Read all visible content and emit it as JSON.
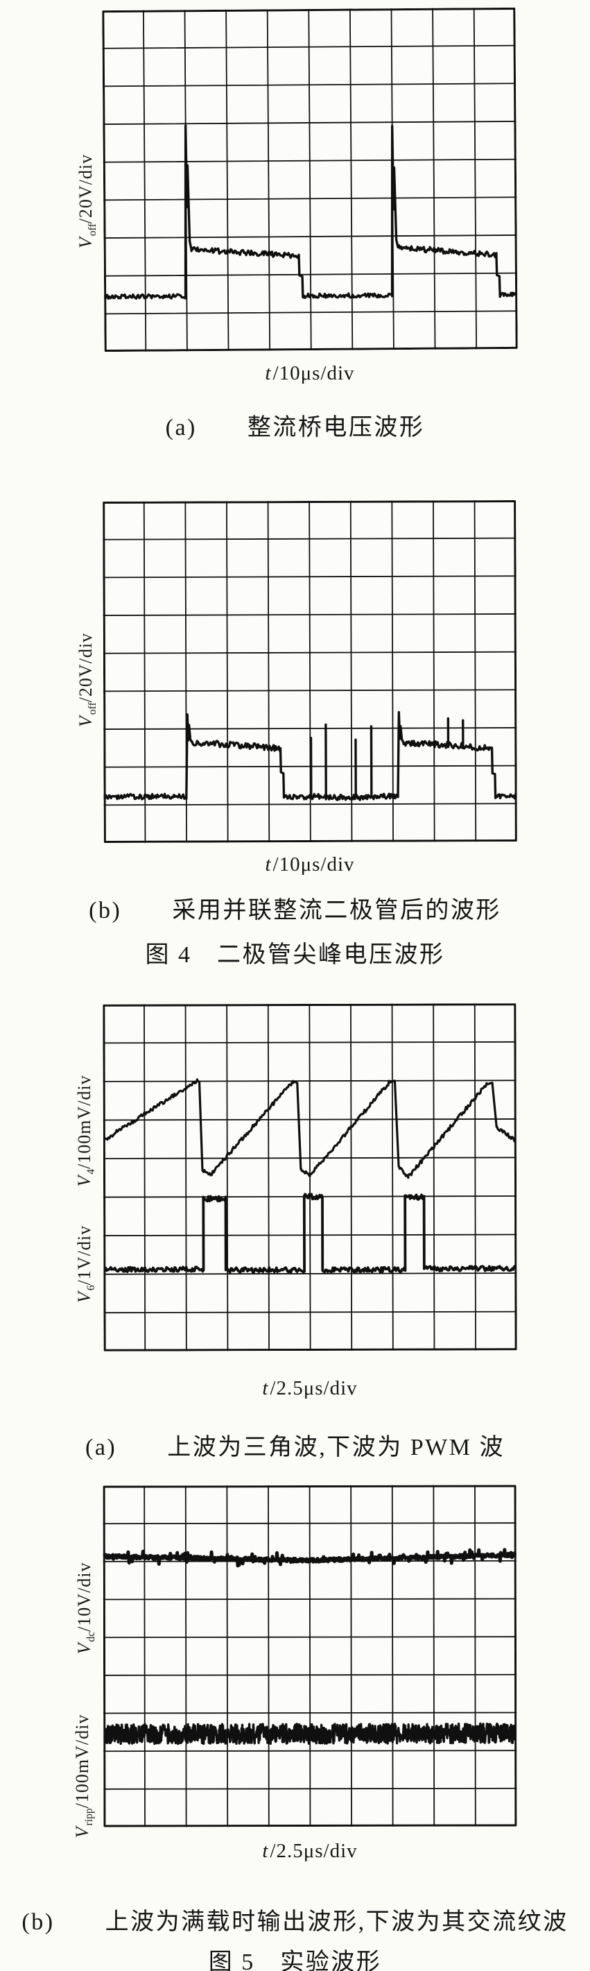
{
  "page": {
    "background": "#fbfbf8",
    "ink": "#141414"
  },
  "figures": [
    {
      "id": "fig4a",
      "ylabels": [
        {
          "var": "V",
          "sub": "off",
          "rest": "/20V/div"
        }
      ],
      "xlabel_var": "t",
      "xlabel_rest": "/10μs/div",
      "captions": [
        "(a)　　整流桥电压波形"
      ]
    },
    {
      "id": "fig4b",
      "ylabels": [
        {
          "var": "V",
          "sub": "off",
          "rest": "/20V/div"
        }
      ],
      "xlabel_var": "t",
      "xlabel_rest": "/10μs/div",
      "captions": [
        "(b)　　采用并联整流二极管后的波形",
        "图 4　二极管尖峰电压波形"
      ]
    },
    {
      "id": "fig5a",
      "ylabels": [
        {
          "var": "V",
          "sub": "4",
          "rest": "/100mV/div"
        },
        {
          "var": "V",
          "sub": "6",
          "rest": "/1V/div"
        }
      ],
      "xlabel_var": "t",
      "xlabel_rest": "/2.5μs/div",
      "captions": [
        "(a)　　上波为三角波,下波为 PWM 波"
      ]
    },
    {
      "id": "fig5b",
      "ylabels": [
        {
          "var": "V",
          "sub": "dc",
          "rest": "/10V/div"
        },
        {
          "var": "V",
          "sub": "ripp",
          "rest": "/100mV/div"
        }
      ],
      "xlabel_var": "t",
      "xlabel_rest": "/2.5μs/div",
      "captions": [
        "(b)　　上波为满载时输出波形,下波为其交流纹波",
        "图 5　实验波形"
      ]
    }
  ],
  "chart_data": [
    {
      "type": "line",
      "title": "(a) 整流桥电压波形",
      "xlabel": "t/10μs/div",
      "ylabel": "V_off/20V/div",
      "x_divisions": 10,
      "y_divisions": 9,
      "x_per_div": "10μs",
      "y_per_div": "20V",
      "grid": true,
      "coords_note": "segment geometry in graticule divisions, x from left edge, y from top edge",
      "features": {
        "baseline_div": 7.55,
        "plateau_div": 6.4,
        "spike_peak_div": 3.05,
        "period_div": 5.0,
        "spike_amplitude_V": 90,
        "plateau_amplitude_V": 24
      },
      "series": [
        {
          "name": "V_off",
          "description": "rectifier-bridge diode voltage with large turn-off spike",
          "style_width": 3.4,
          "segments": [
            {
              "t": "flat",
              "a": 0,
              "b": 1.97,
              "y": 7.55,
              "n": 0.055
            },
            {
              "t": "seq",
              "pts": [
                [
                  1.97,
                  7.55
                ],
                [
                  2.0,
                  3.05
                ],
                [
                  2.02,
                  5.2
                ],
                [
                  2.04,
                  4.1
                ],
                [
                  2.08,
                  6.1
                ],
                [
                  2.12,
                  6.32
                ]
              ]
            },
            {
              "t": "ramp",
              "a": 2.12,
              "b": 4.72,
              "y": 6.32,
              "y2": 6.5,
              "n": 0.07
            },
            {
              "t": "seq",
              "pts": [
                [
                  4.72,
                  6.5
                ],
                [
                  4.73,
                  7.02
                ],
                [
                  4.8,
                  7.05
                ],
                [
                  4.81,
                  7.6
                ],
                [
                  4.84,
                  7.56
                ]
              ]
            },
            {
              "t": "flat",
              "a": 4.84,
              "b": 6.97,
              "y": 7.56,
              "n": 0.055
            },
            {
              "t": "seq",
              "pts": [
                [
                  6.97,
                  7.56
                ],
                [
                  7.0,
                  3.1
                ],
                [
                  7.02,
                  5.3
                ],
                [
                  7.04,
                  4.2
                ],
                [
                  7.08,
                  6.1
                ],
                [
                  7.12,
                  6.3
                ]
              ]
            },
            {
              "t": "ramp",
              "a": 7.12,
              "b": 9.5,
              "y": 6.3,
              "y2": 6.52,
              "n": 0.07
            },
            {
              "t": "seq",
              "pts": [
                [
                  9.5,
                  6.52
                ],
                [
                  9.51,
                  7.05
                ],
                [
                  9.57,
                  7.08
                ],
                [
                  9.58,
                  7.62
                ],
                [
                  9.6,
                  7.57
                ]
              ]
            },
            {
              "t": "flat",
              "a": 9.6,
              "b": 9.97,
              "y": 7.57,
              "n": 0.055
            }
          ]
        }
      ]
    },
    {
      "type": "line",
      "title": "(b) 采用并联整流二极管后的波形",
      "xlabel": "t/10μs/div",
      "ylabel": "V_off/20V/div",
      "x_divisions": 10,
      "y_divisions": 9,
      "x_per_div": "10μs",
      "y_per_div": "20V",
      "grid": true,
      "coords_note": "segment geometry in graticule divisions, x from left edge, y from top edge",
      "features": {
        "baseline_div": 7.8,
        "plateau_div": 6.45,
        "spike_peak_div": 5.6,
        "period_div": 5.1,
        "spike_amplitude_V": 44,
        "plateau_amplitude_V": 28
      },
      "series": [
        {
          "name": "V_off",
          "description": "diode voltage after paralleling rectifier diodes, much smaller spike",
          "style_width": 3.4,
          "segments": [
            {
              "t": "flat",
              "a": 0,
              "b": 2.0,
              "y": 7.78,
              "n": 0.07
            },
            {
              "t": "seq",
              "pts": [
                [
                  2.0,
                  7.78
                ],
                [
                  2.03,
                  5.62
                ],
                [
                  2.05,
                  6.3
                ],
                [
                  2.07,
                  5.9
                ],
                [
                  2.1,
                  6.28
                ],
                [
                  2.14,
                  6.35
                ]
              ]
            },
            {
              "t": "ramp",
              "a": 2.14,
              "b": 4.28,
              "y": 6.35,
              "y2": 6.52,
              "n": 0.08
            },
            {
              "t": "seq",
              "pts": [
                [
                  4.28,
                  6.52
                ],
                [
                  4.29,
                  7.15
                ],
                [
                  4.35,
                  7.18
                ],
                [
                  4.36,
                  7.82
                ],
                [
                  4.4,
                  7.78
                ]
              ]
            },
            {
              "t": "flat",
              "a": 4.4,
              "b": 5.0,
              "y": 7.8,
              "n": 0.07
            },
            {
              "t": "vline",
              "x": 5.02,
              "y2": 6.25
            },
            {
              "t": "flat",
              "a": 5.02,
              "b": 5.36,
              "y": 7.8,
              "n": 0.07
            },
            {
              "t": "vline",
              "x": 5.38,
              "y2": 5.9
            },
            {
              "t": "flat",
              "a": 5.38,
              "b": 6.08,
              "y": 7.82,
              "n": 0.07
            },
            {
              "t": "vline",
              "x": 6.1,
              "y2": 6.3
            },
            {
              "t": "flat",
              "a": 6.1,
              "b": 6.46,
              "y": 7.82,
              "n": 0.07
            },
            {
              "t": "vline",
              "x": 6.48,
              "y2": 5.95
            },
            {
              "t": "flat",
              "a": 6.48,
              "b": 7.12,
              "y": 7.8,
              "n": 0.07
            },
            {
              "t": "seq",
              "pts": [
                [
                  7.12,
                  7.8
                ],
                [
                  7.15,
                  5.58
                ],
                [
                  7.17,
                  6.28
                ],
                [
                  7.19,
                  5.95
                ],
                [
                  7.22,
                  6.3
                ],
                [
                  7.26,
                  6.38
                ]
              ]
            },
            {
              "t": "ramp",
              "a": 7.26,
              "b": 8.32,
              "y": 6.38,
              "y2": 6.45,
              "n": 0.08
            },
            {
              "t": "vline",
              "x": 8.34,
              "y2": 5.75
            },
            {
              "t": "ramp",
              "a": 8.34,
              "b": 8.68,
              "y": 6.45,
              "y2": 6.48,
              "n": 0.08
            },
            {
              "t": "vline",
              "x": 8.7,
              "y2": 5.8
            },
            {
              "t": "ramp",
              "a": 8.7,
              "b": 9.4,
              "y": 6.48,
              "y2": 6.55,
              "n": 0.08
            },
            {
              "t": "seq",
              "pts": [
                [
                  9.4,
                  6.55
                ],
                [
                  9.41,
                  7.2
                ],
                [
                  9.47,
                  7.22
                ],
                [
                  9.48,
                  7.85
                ],
                [
                  9.52,
                  7.8
                ]
              ]
            },
            {
              "t": "flat",
              "a": 9.52,
              "b": 9.97,
              "y": 7.8,
              "n": 0.07
            }
          ]
        }
      ]
    },
    {
      "type": "line",
      "title": "(a) 上波为三角波,下波为 PWM 波",
      "xlabel": "t/2.5μs/div",
      "ylabel": "V_4/100mV/div ; V_6/1V/div",
      "x_divisions": 10,
      "y_divisions": 9,
      "x_per_div": "2.5μs",
      "grid": true,
      "coords_note": "segment geometry in graticule divisions, x from left edge, y from top edge",
      "features": {
        "sawtooth_period_div": 2.35,
        "sawtooth_period_us": 5.9,
        "sawtooth_pkpk_mV": 240,
        "pwm_high_V": 1.85,
        "pwm_duty": 0.23
      },
      "series": [
        {
          "name": "V_4 (三角波)",
          "scale": "100mV/div",
          "style_width": 3.2,
          "segments": [
            {
              "t": "ramp",
              "a": 0.05,
              "b": 2.28,
              "y": 3.5,
              "y2": 1.98,
              "n": 0.05
            },
            {
              "t": "seq",
              "pts": [
                [
                  2.28,
                  1.98
                ],
                [
                  2.33,
                  2.02
                ],
                [
                  2.4,
                  4.3
                ]
              ]
            },
            {
              "t": "ramp",
              "a": 2.4,
              "b": 2.6,
              "y": 4.3,
              "y2": 4.42,
              "n": 0.04
            },
            {
              "t": "ramp",
              "a": 2.6,
              "b": 4.6,
              "y": 4.42,
              "y2": 2.0,
              "n": 0.05
            },
            {
              "t": "seq",
              "pts": [
                [
                  4.6,
                  2.0
                ],
                [
                  4.7,
                  2.05
                ],
                [
                  4.78,
                  4.28
                ]
              ]
            },
            {
              "t": "ramp",
              "a": 4.78,
              "b": 5.0,
              "y": 4.28,
              "y2": 4.45,
              "n": 0.04
            },
            {
              "t": "ramp",
              "a": 5.0,
              "b": 6.92,
              "y": 4.45,
              "y2": 2.05,
              "n": 0.05
            },
            {
              "t": "seq",
              "pts": [
                [
                  6.92,
                  2.05
                ],
                [
                  7.06,
                  2.0
                ],
                [
                  7.15,
                  4.22
                ]
              ]
            },
            {
              "t": "ramp",
              "a": 7.15,
              "b": 7.38,
              "y": 4.22,
              "y2": 4.5,
              "n": 0.04
            },
            {
              "t": "ramp",
              "a": 7.38,
              "b": 9.28,
              "y": 4.5,
              "y2": 2.1,
              "n": 0.05
            },
            {
              "t": "seq",
              "pts": [
                [
                  9.28,
                  2.1
                ],
                [
                  9.42,
                  2.06
                ],
                [
                  9.52,
                  3.2
                ]
              ]
            },
            {
              "t": "ramp",
              "a": 9.52,
              "b": 9.95,
              "y": 3.2,
              "y2": 3.55,
              "n": 0.05
            }
          ]
        },
        {
          "name": "V_6 (PWM 波)",
          "scale": "1V/div",
          "style_width": 3.8,
          "segments": [
            {
              "t": "flat",
              "a": 0.05,
              "b": 2.42,
              "y": 6.88,
              "n": 0.06
            },
            {
              "t": "step",
              "x": 2.42,
              "y2": 5.05
            },
            {
              "t": "flat",
              "a": 2.42,
              "b": 2.96,
              "y": 5.05,
              "n": 0.07
            },
            {
              "t": "step",
              "x": 2.96,
              "y2": 6.9
            },
            {
              "t": "flat",
              "a": 2.96,
              "b": 4.86,
              "y": 6.9,
              "n": 0.06
            },
            {
              "t": "step",
              "x": 4.86,
              "y2": 5.0
            },
            {
              "t": "flat",
              "a": 4.86,
              "b": 5.3,
              "y": 5.0,
              "n": 0.07
            },
            {
              "t": "step",
              "x": 5.3,
              "y2": 6.9
            },
            {
              "t": "flat",
              "a": 5.3,
              "b": 7.3,
              "y": 6.9,
              "n": 0.06
            },
            {
              "t": "step",
              "x": 7.3,
              "y2": 5.02
            },
            {
              "t": "flat",
              "a": 7.3,
              "b": 7.76,
              "y": 5.02,
              "n": 0.07
            },
            {
              "t": "step",
              "x": 7.76,
              "y2": 6.88
            },
            {
              "t": "flat",
              "a": 7.76,
              "b": 9.95,
              "y": 6.88,
              "n": 0.06
            }
          ]
        }
      ]
    },
    {
      "type": "line",
      "title": "(b) 上波为满载时输出波形,下波为其交流纹波",
      "xlabel": "t/2.5μs/div",
      "ylabel": "V_dc/10V/div ; V_ripp/100mV/div",
      "x_divisions": 10,
      "y_divisions": 9,
      "x_per_div": "2.5μs",
      "grid": true,
      "coords_note": "segment geometry in graticule divisions, x from left edge, y from top edge",
      "features": {
        "vdc_level_div": 1.9,
        "ripple_center_div": 6.55,
        "ripple_pkpk_mV": 55
      },
      "series": [
        {
          "name": "V_dc (满载输出)",
          "scale": "10V/div",
          "style_width": 5,
          "segments": [
            {
              "t": "ramp",
              "a": 0.03,
              "b": 5.0,
              "y": 1.86,
              "y2": 1.98,
              "n": 0.045,
              "blip": 0.1,
              "bamp": 0.16,
              "d": 0.012
            },
            {
              "t": "ramp",
              "a": 5.0,
              "b": 9.97,
              "y": 1.98,
              "y2": 1.84,
              "n": 0.045,
              "blip": 0.1,
              "bamp": 0.16,
              "d": 0.012
            }
          ]
        },
        {
          "name": "V_ripp (交流纹波)",
          "scale": "100mV/div",
          "style_width": 3.4,
          "segments": [
            {
              "t": "flat",
              "a": 0.03,
              "b": 9.97,
              "y": 6.55,
              "n": 0.26,
              "d": 0.009
            }
          ]
        }
      ]
    }
  ]
}
